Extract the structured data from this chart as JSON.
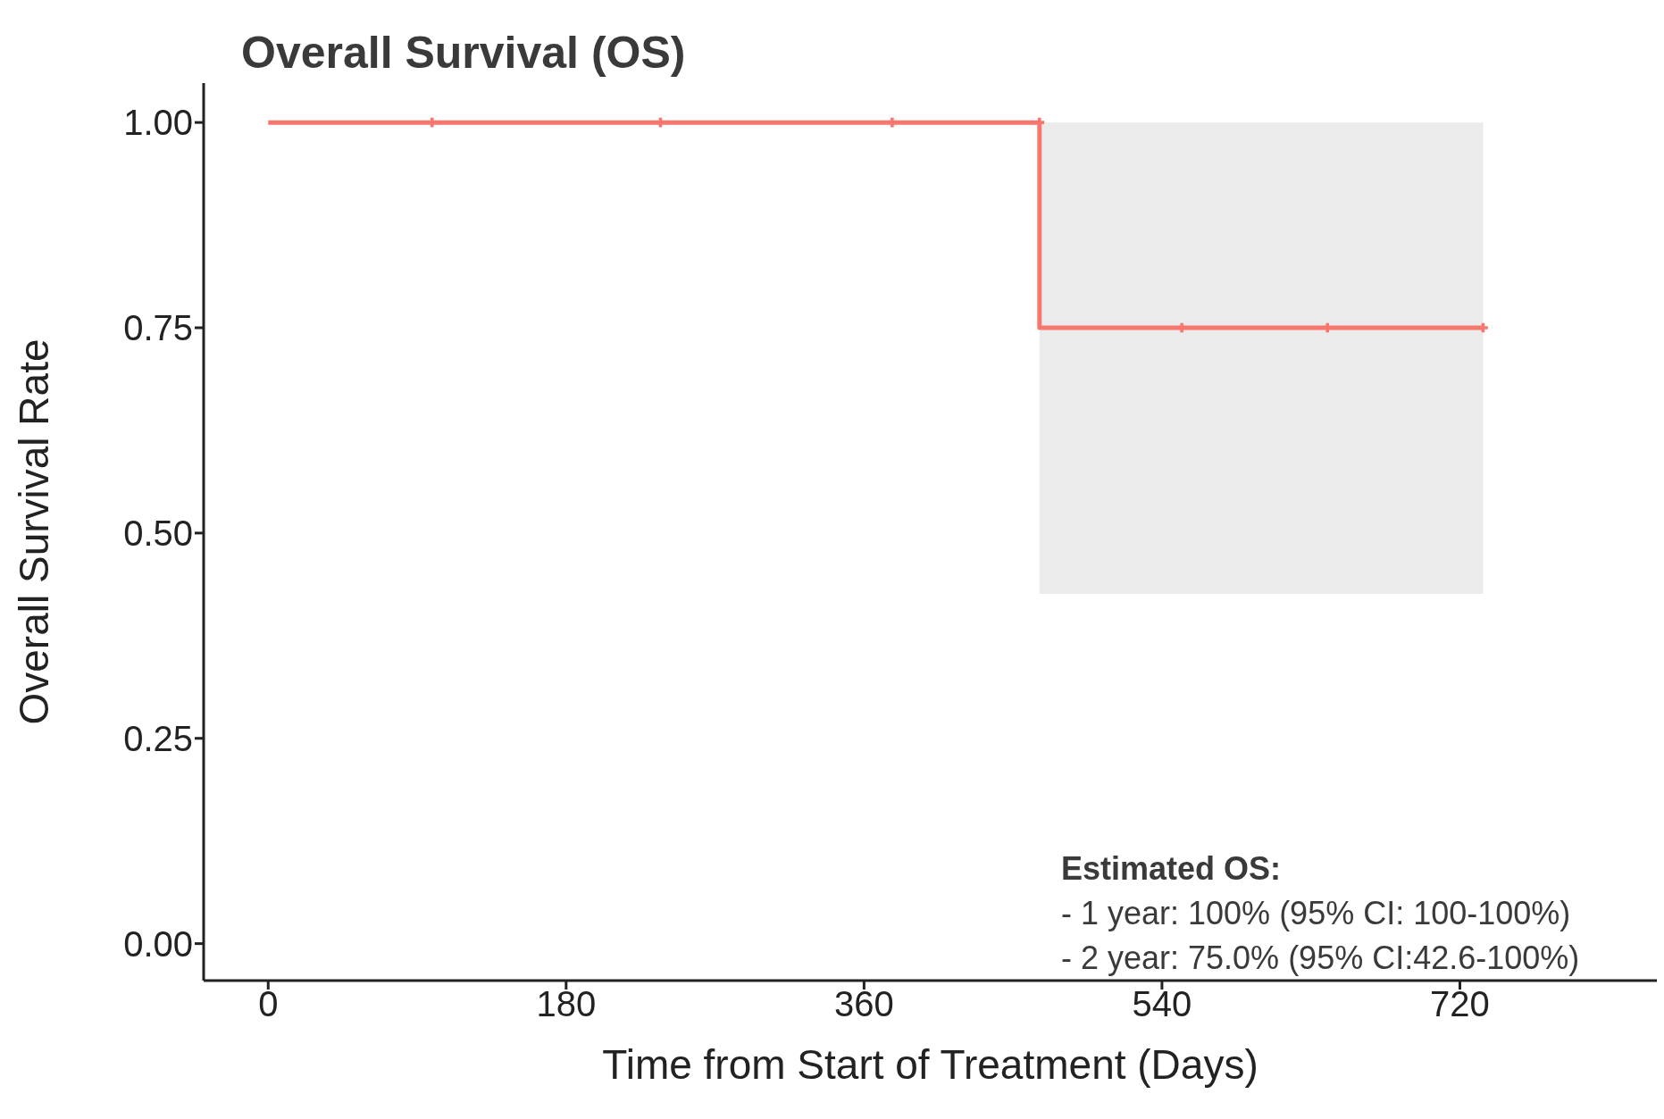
{
  "chart_data": {
    "type": "step",
    "title": "Overall Survival (OS)",
    "xlabel": "Time from Start of Treatment (Days)",
    "ylabel": "Overall Survival Rate",
    "series": [
      {
        "color": "#f8766d",
        "x": [
          0,
          466,
          734
        ],
        "values": [
          1,
          0.75,
          0.75
        ],
        "lower": [
          1,
          0.426,
          0.426
        ],
        "upper": [
          1,
          1,
          1
        ],
        "marker": "none"
      },
      {
        "type": "scatter",
        "color": "#f8766d",
        "x": [
          99,
          237,
          377,
          466,
          552,
          640,
          734
        ],
        "values": [
          1,
          1,
          1,
          1,
          0.75,
          0.75,
          0.75
        ],
        "marker": "cross"
      }
    ],
    "xlim": [
      -39,
      839
    ],
    "xticks": [
      0,
      180,
      360,
      540,
      720
    ],
    "ylim": [
      -0.045,
      1.048
    ],
    "yticks": [
      {
        "value": 0,
        "label": "0.00"
      },
      {
        "value": 0.25,
        "label": "0.25"
      },
      {
        "value": 0.5,
        "label": "0.50"
      },
      {
        "value": 0.75,
        "label": "0.75"
      },
      {
        "value": 1,
        "label": "1.00"
      }
    ],
    "grid": false,
    "legend": false,
    "annotations": [
      "Estimated OS:",
      "- 1 year: 100% (95% CI: 100-100%)",
      "- 2 year: 75.0% (95% CI:42.6-100%)"
    ]
  }
}
